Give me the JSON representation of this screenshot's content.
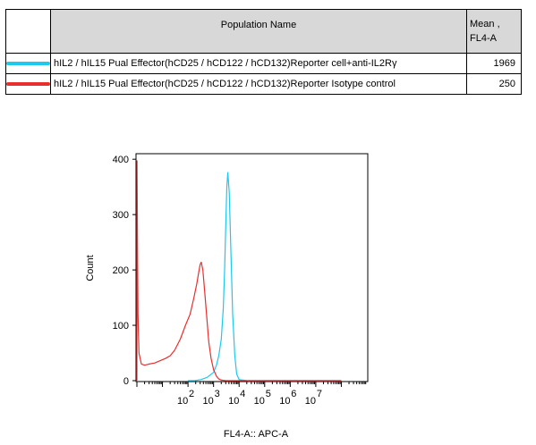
{
  "legend": {
    "header_name": "Population Name",
    "header_mean": "Mean ,\nFL4-A",
    "rows": [
      {
        "label": "hIL2 / hIL15 Pual Effector(hCD25 / hCD122 / hCD132)Reporter cell+anti-IL2Rγ",
        "mean": "1969",
        "color": "#1ec8ee"
      },
      {
        "label": "hIL2 / hIL15 Pual Effector(hCD25 / hCD122 / hCD132)Reporter Isotype control",
        "mean": "250",
        "color": "#e8302e"
      }
    ]
  },
  "chart_data": {
    "type": "line",
    "title": "",
    "xlabel": "FL4-A:: APC-A",
    "ylabel": "Count",
    "x_scale": "log",
    "xlim": [
      1,
      1000000000
    ],
    "ylim": [
      0,
      410
    ],
    "y_ticks": [
      0,
      100,
      200,
      300,
      400
    ],
    "x_tick_labels": [
      {
        "base": "10",
        "exp": "2"
      },
      {
        "base": "10",
        "exp": "3"
      },
      {
        "base": "10",
        "exp": "4"
      },
      {
        "base": "10",
        "exp": "5"
      },
      {
        "base": "10",
        "exp": "6"
      },
      {
        "base": "10",
        "exp": "7"
      }
    ],
    "grid": false,
    "series": [
      {
        "name": "hIL2 / hIL15 Pual Effector(hCD25 / hCD122 / hCD132)Reporter cell+anti-IL2Rγ",
        "color": "#1ec8ee",
        "x": [
          100,
          180,
          320,
          560,
          1000,
          1300,
          1600,
          2000,
          2400,
          2700,
          3000,
          3300,
          3600,
          4100,
          4800,
          5600,
          6800,
          8000,
          10000,
          20000,
          100000,
          1000000,
          100000000
        ],
        "y": [
          0,
          0,
          2,
          6,
          15,
          28,
          45,
          75,
          130,
          200,
          280,
          350,
          376,
          340,
          230,
          120,
          45,
          12,
          2,
          0,
          0,
          0,
          0
        ]
      },
      {
        "name": "hIL2 / hIL15 Pual Effector(hCD25 / hCD122 / hCD132)Reporter Isotype control",
        "color": "#e8302e",
        "x": [
          1,
          1.01,
          1.05,
          1.1,
          1.2,
          1.5,
          2,
          3,
          5,
          8,
          13,
          20,
          30,
          50,
          80,
          120,
          170,
          220,
          260,
          300,
          330,
          380,
          450,
          550,
          650,
          800,
          1000,
          1300,
          1600,
          2000,
          3000,
          5000,
          10000,
          100000000
        ],
        "y": [
          0,
          410,
          260,
          120,
          50,
          30,
          28,
          30,
          32,
          36,
          40,
          45,
          55,
          75,
          100,
          120,
          150,
          175,
          195,
          210,
          214,
          200,
          160,
          110,
          70,
          40,
          20,
          8,
          3,
          1,
          0,
          0,
          0,
          0
        ]
      }
    ]
  }
}
